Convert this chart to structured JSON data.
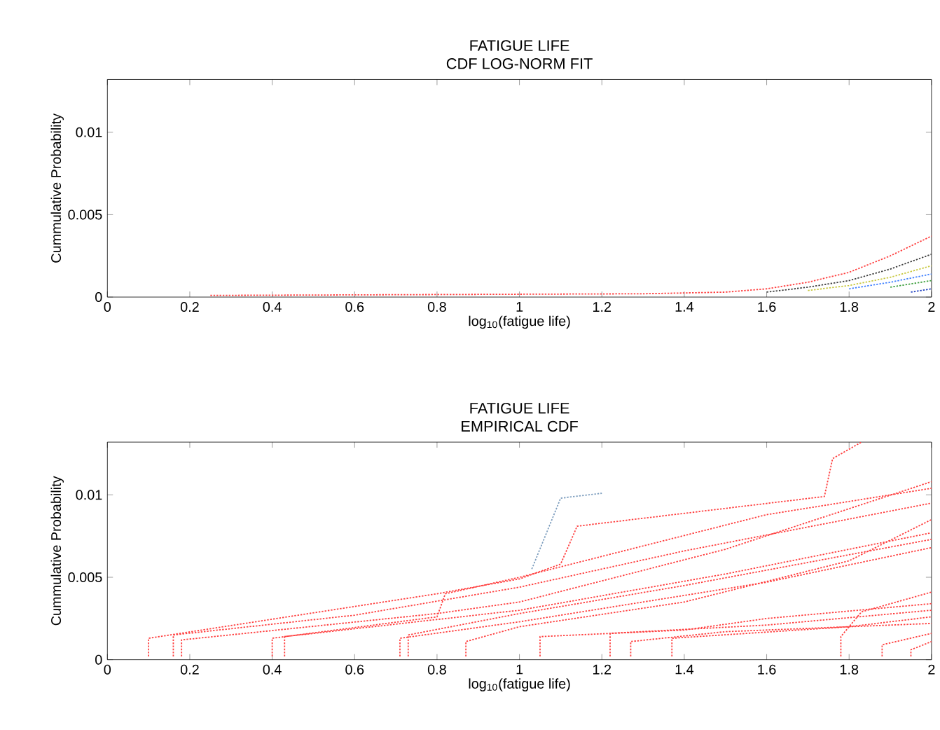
{
  "chart_data": [
    {
      "type": "line",
      "title": "FATIGUE LIFE",
      "subtitle": "CDF LOG-NORM FIT",
      "xlabel": "log$_{10}$(fatigue life)",
      "ylabel": "Cummulative Probability",
      "xlim": [
        0,
        2
      ],
      "ylim": [
        0,
        0.0132
      ],
      "xticks": [
        0,
        0.2,
        0.4,
        0.6,
        0.8,
        1,
        1.2,
        1.4,
        1.6,
        1.8,
        2
      ],
      "yticks": [
        0,
        0.005,
        0.01
      ],
      "line_style": "dotted",
      "series": [
        {
          "color": "#ff4040",
          "x": [
            0.25,
            1.3,
            1.5,
            1.6,
            1.7,
            1.8,
            1.9,
            2.0
          ],
          "values": [
            0.0001,
            0.0002,
            0.0003,
            0.0005,
            0.0009,
            0.0015,
            0.0025,
            0.0037
          ]
        },
        {
          "color": "#404040",
          "x": [
            1.6,
            1.7,
            1.8,
            1.9,
            2.0
          ],
          "values": [
            0.0003,
            0.0006,
            0.001,
            0.0017,
            0.0026
          ]
        },
        {
          "color": "#c8c840",
          "x": [
            1.7,
            1.8,
            1.9,
            2.0
          ],
          "values": [
            0.0004,
            0.0007,
            0.0012,
            0.0019
          ]
        },
        {
          "color": "#4080ff",
          "x": [
            1.8,
            1.9,
            2.0
          ],
          "values": [
            0.0005,
            0.0009,
            0.0014
          ]
        },
        {
          "color": "#40a040",
          "x": [
            1.9,
            2.0
          ],
          "values": [
            0.0006,
            0.001
          ]
        },
        {
          "color": "#2040c0",
          "x": [
            1.95,
            2.0
          ],
          "values": [
            0.0003,
            0.0005
          ]
        }
      ]
    },
    {
      "type": "line",
      "title": "FATIGUE LIFE",
      "subtitle": "EMPIRICAL CDF",
      "xlabel": "log$_{10}$(fatigue life)",
      "ylabel": "Cummulative Probability",
      "xlim": [
        0,
        2
      ],
      "ylim": [
        0,
        0.0132
      ],
      "xticks": [
        0,
        0.2,
        0.4,
        0.6,
        0.8,
        1,
        1.2,
        1.4,
        1.6,
        1.8,
        2
      ],
      "yticks": [
        0,
        0.005,
        0.01
      ],
      "line_style": "dotted",
      "series": [
        {
          "color": "#ff4040",
          "x": [
            0.1,
            0.1,
            0.8,
            1.0,
            1.1,
            1.14,
            1.74,
            1.76,
            1.83
          ],
          "values": [
            0.0002,
            0.0013,
            0.004,
            0.0049,
            0.0058,
            0.0081,
            0.0099,
            0.0122,
            0.0132
          ]
        },
        {
          "color": "#ff4040",
          "x": [
            0.16,
            0.16,
            0.6,
            1.0,
            1.4,
            2.0
          ],
          "values": [
            0.0002,
            0.0015,
            0.0027,
            0.0044,
            0.0066,
            0.0095
          ]
        },
        {
          "color": "#ff4040",
          "x": [
            0.18,
            0.18,
            0.8,
            1.0,
            1.5,
            2.0
          ],
          "values": [
            0.0002,
            0.0012,
            0.0028,
            0.0035,
            0.0067,
            0.0108
          ]
        },
        {
          "color": "#ff4040",
          "x": [
            0.4,
            0.4,
            0.8,
            0.82,
            1.0,
            1.6,
            2.0
          ],
          "values": [
            0.0002,
            0.0013,
            0.0026,
            0.004,
            0.005,
            0.0088,
            0.0104
          ]
        },
        {
          "color": "#ff4040",
          "x": [
            0.43,
            0.43,
            1.0,
            1.5,
            2.0
          ],
          "values": [
            0.0002,
            0.0014,
            0.003,
            0.0052,
            0.0077
          ]
        },
        {
          "color": "#ff4040",
          "x": [
            0.71,
            0.71,
            1.0,
            1.6,
            2.0
          ],
          "values": [
            0.0002,
            0.0013,
            0.0023,
            0.0047,
            0.0068
          ]
        },
        {
          "color": "#ff4040",
          "x": [
            0.73,
            0.73,
            1.0,
            1.4,
            2.0
          ],
          "values": [
            0.0002,
            0.0015,
            0.0028,
            0.0045,
            0.0073
          ]
        },
        {
          "color": "#ff4040",
          "x": [
            0.87,
            0.87,
            1.0,
            1.4,
            1.8,
            2.0
          ],
          "values": [
            0.0002,
            0.0011,
            0.002,
            0.0035,
            0.006,
            0.0085
          ]
        },
        {
          "color": "#ff4040",
          "x": [
            1.05,
            1.05,
            1.4,
            1.6,
            2.0
          ],
          "values": [
            0.0002,
            0.0014,
            0.0018,
            0.0025,
            0.0034
          ]
        },
        {
          "color": "#ff4040",
          "x": [
            1.22,
            1.22,
            1.6,
            2.0
          ],
          "values": [
            0.0002,
            0.0016,
            0.0021,
            0.003
          ]
        },
        {
          "color": "#ff4040",
          "x": [
            1.27,
            1.27,
            1.5,
            2.0
          ],
          "values": [
            0.0002,
            0.0011,
            0.0017,
            0.0022
          ]
        },
        {
          "color": "#ff4040",
          "x": [
            1.37,
            1.37,
            1.8,
            2.0
          ],
          "values": [
            0.0002,
            0.0013,
            0.002,
            0.0026
          ]
        },
        {
          "color": "#ff4040",
          "x": [
            1.78,
            1.78,
            1.83,
            2.0
          ],
          "values": [
            0.0002,
            0.0014,
            0.0029,
            0.0041
          ]
        },
        {
          "color": "#ff4040",
          "x": [
            1.88,
            1.88,
            2.0
          ],
          "values": [
            0.0002,
            0.0009,
            0.0016
          ]
        },
        {
          "color": "#ff4040",
          "x": [
            1.95,
            1.95,
            2.0
          ],
          "values": [
            0.0002,
            0.0006,
            0.0011
          ]
        },
        {
          "color": "#7f9fbf",
          "x": [
            1.03,
            1.1,
            1.2
          ],
          "values": [
            0.0055,
            0.0098,
            0.0101
          ]
        }
      ]
    }
  ]
}
